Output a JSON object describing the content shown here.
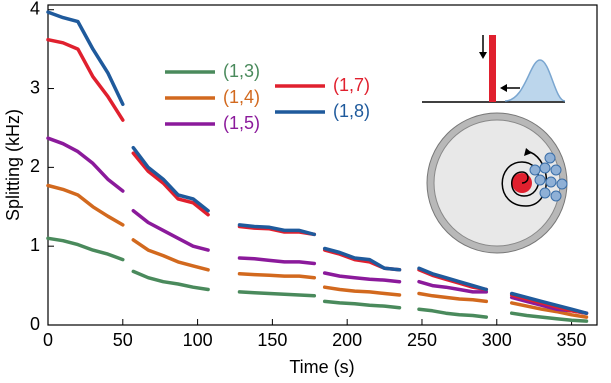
{
  "chart_data": {
    "type": "line",
    "xlabel": "Time (s)",
    "ylabel": "Splitting (kHz)",
    "x": [
      0,
      10,
      20,
      30,
      40,
      50,
      null,
      57,
      67,
      77,
      87,
      97,
      107,
      null,
      128,
      138,
      148,
      158,
      168,
      178,
      null,
      185,
      195,
      205,
      215,
      225,
      235,
      null,
      248,
      257,
      266,
      275,
      284,
      293,
      null,
      310,
      320,
      330,
      340,
      350,
      360
    ],
    "series": [
      {
        "name": "(1,3)",
        "color": "#4a8a5c",
        "values": [
          1.1,
          1.07,
          1.02,
          0.95,
          0.9,
          0.83,
          null,
          0.68,
          0.6,
          0.55,
          0.52,
          0.48,
          0.45,
          null,
          0.42,
          0.41,
          0.4,
          0.39,
          0.38,
          0.37,
          null,
          0.3,
          0.28,
          0.27,
          0.25,
          0.24,
          0.22,
          null,
          0.2,
          0.18,
          0.15,
          0.13,
          0.12,
          0.1,
          null,
          0.15,
          0.12,
          0.1,
          0.08,
          0.06,
          0.05
        ]
      },
      {
        "name": "(1,4)",
        "color": "#d2691e",
        "values": [
          1.77,
          1.72,
          1.65,
          1.5,
          1.38,
          1.27,
          null,
          1.08,
          0.95,
          0.88,
          0.8,
          0.75,
          0.7,
          null,
          0.65,
          0.64,
          0.63,
          0.62,
          0.62,
          0.6,
          null,
          0.48,
          0.45,
          0.43,
          0.42,
          0.4,
          0.38,
          null,
          0.4,
          0.37,
          0.35,
          0.33,
          0.32,
          0.3,
          null,
          0.28,
          0.24,
          0.2,
          0.17,
          0.13,
          0.1
        ]
      },
      {
        "name": "(1,5)",
        "color": "#8b1a9b",
        "values": [
          2.37,
          2.3,
          2.2,
          2.05,
          1.85,
          1.7,
          null,
          1.45,
          1.3,
          1.2,
          1.1,
          1.0,
          0.95,
          null,
          0.85,
          0.84,
          0.82,
          0.8,
          0.8,
          0.78,
          null,
          0.66,
          0.62,
          0.6,
          0.58,
          0.57,
          0.55,
          null,
          0.55,
          0.5,
          0.48,
          0.45,
          0.42,
          0.42,
          null,
          0.35,
          0.3,
          0.25,
          0.2,
          0.18,
          0.15
        ]
      },
      {
        "name": "(1,7)",
        "color": "#e0202e",
        "values": [
          3.62,
          3.58,
          3.5,
          3.15,
          2.9,
          2.6,
          null,
          2.18,
          1.95,
          1.8,
          1.6,
          1.55,
          1.4,
          null,
          1.25,
          1.23,
          1.22,
          1.18,
          1.18,
          1.15,
          null,
          0.95,
          0.9,
          0.83,
          0.8,
          0.72,
          0.7,
          null,
          0.7,
          0.63,
          0.58,
          0.53,
          0.48,
          0.45,
          null,
          0.38,
          0.33,
          0.28,
          0.23,
          0.18,
          0.15
        ]
      },
      {
        "name": "(1,8)",
        "color": "#1f5a9c",
        "values": [
          3.97,
          3.9,
          3.85,
          3.5,
          3.2,
          2.8,
          null,
          2.25,
          2.0,
          1.85,
          1.65,
          1.6,
          1.45,
          null,
          1.27,
          1.25,
          1.24,
          1.2,
          1.2,
          1.15,
          null,
          0.97,
          0.92,
          0.85,
          0.83,
          0.72,
          0.7,
          null,
          0.72,
          0.65,
          0.6,
          0.55,
          0.5,
          0.45,
          null,
          0.4,
          0.35,
          0.3,
          0.25,
          0.2,
          0.15
        ]
      }
    ],
    "xlim": [
      0,
      367
    ],
    "ylim": [
      0,
      4.06
    ],
    "xticks": [
      0,
      50,
      100,
      150,
      200,
      250,
      300,
      350
    ],
    "yticks": [
      0,
      1,
      2,
      3,
      4
    ]
  }
}
